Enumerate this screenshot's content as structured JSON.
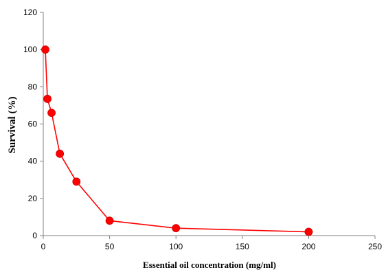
{
  "chart_data": {
    "type": "line",
    "title": "",
    "xlabel": "Essential oil concentration (mg/ml)",
    "ylabel": "Survival  (%)",
    "xlim": [
      0,
      250
    ],
    "ylim": [
      0,
      120
    ],
    "xticks": [
      0,
      50,
      100,
      150,
      200,
      250
    ],
    "yticks": [
      0,
      20,
      40,
      60,
      80,
      100,
      120
    ],
    "grid": false,
    "legend": "none",
    "series": [
      {
        "color": "#ff0000",
        "marker": "circle",
        "x": [
          1.56,
          3.125,
          6.25,
          12.5,
          25,
          50,
          100,
          200
        ],
        "y": [
          100,
          73.5,
          66,
          44,
          29,
          8,
          4,
          2
        ]
      }
    ]
  }
}
